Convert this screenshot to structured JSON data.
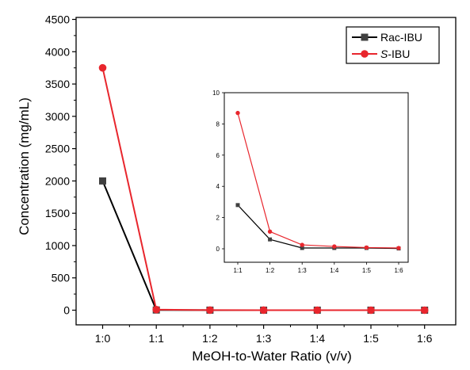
{
  "chart_data": [
    {
      "type": "line",
      "categories": [
        "1:0",
        "1:1",
        "1:2",
        "1:3",
        "1:4",
        "1:5",
        "1:6"
      ],
      "xlabel": "MeOH-to-Water Ratio (v/v)",
      "ylabel": "Concentration (mg/mL)",
      "ylim": [
        0,
        4500
      ],
      "yticks": [
        "0",
        "500",
        "1000",
        "1500",
        "2000",
        "2500",
        "3000",
        "3500",
        "4000",
        "4500"
      ],
      "legend_position": "top-right",
      "series": [
        {
          "name": "Rac-IBU",
          "name_prefix": "",
          "name_suffix": "Rac-IBU",
          "color": "#000000",
          "marker": "square",
          "marker_color": "#404040",
          "values": [
            2000,
            2.8,
            0.6,
            0.05,
            0.05,
            0.05,
            0.02
          ]
        },
        {
          "name": "S-IBU",
          "name_prefix": "S",
          "name_suffix": "-IBU",
          "color": "#e8262d",
          "marker": "circle",
          "marker_color": "#e8262d",
          "values": [
            3750,
            8.7,
            1.1,
            0.25,
            0.15,
            0.08,
            0.05
          ]
        }
      ]
    },
    {
      "type": "line",
      "categories": [
        "1:1",
        "1:2",
        "1:3",
        "1:4",
        "1:5",
        "1:6"
      ],
      "ylim": [
        0,
        10
      ],
      "yticks": [
        "0",
        "2",
        "4",
        "6",
        "8",
        "10"
      ],
      "series": [
        {
          "color": "#000000",
          "marker": "square",
          "values": [
            2.8,
            0.6,
            0.05,
            0.05,
            0.05,
            0.02
          ]
        },
        {
          "color": "#e8262d",
          "marker": "circle",
          "values": [
            8.7,
            1.1,
            0.25,
            0.15,
            0.08,
            0.05
          ]
        }
      ]
    }
  ]
}
